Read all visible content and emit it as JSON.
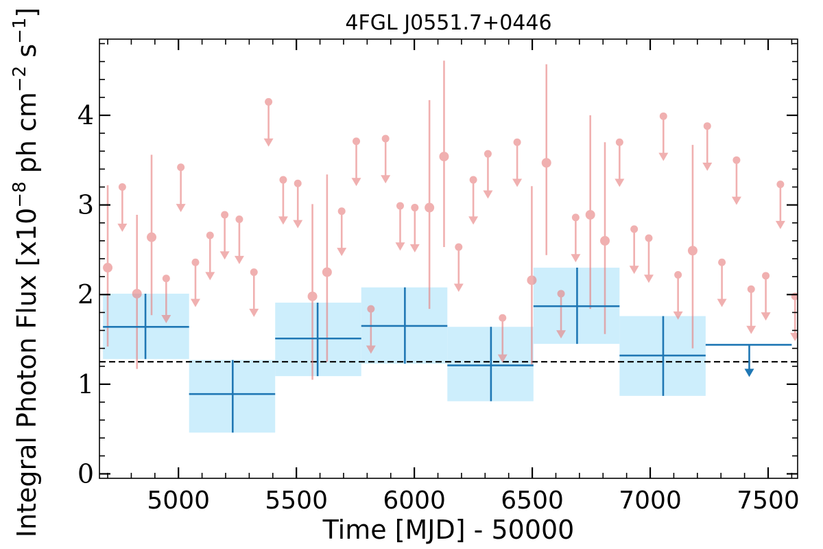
{
  "chart_data": {
    "type": "scatter",
    "title": "4FGL J0551.7+0446",
    "xlabel": "Time [MJD] - 50000",
    "ylabel": "Integral Photon Flux [x10^-8 ph cm^-2 s^-1]",
    "ylabel_parts": {
      "base": "Integral Photon Flux [x10",
      "exp1": "−8",
      "mid": " ph cm",
      "exp2": "−2",
      "mid2": " s",
      "exp3": "−1",
      "end": "]"
    },
    "xlim": [
      4665,
      7625
    ],
    "ylim": [
      -0.05,
      4.85
    ],
    "xticks": [
      5000,
      5500,
      6000,
      6500,
      7000,
      7500
    ],
    "yticks": [
      0,
      1,
      2,
      3,
      4
    ],
    "grid": false,
    "colors": {
      "short_bins": "#e88080",
      "long_bins": "#1f77b4",
      "long_bins_band": "#cdeefc",
      "reference_line": "#000000"
    },
    "reference_line": {
      "y": 1.25,
      "style": "dashed"
    },
    "long_bins": [
      {
        "xlo": 4680,
        "xhi": 5045,
        "x": 4860,
        "y": 1.64,
        "ylo": 1.28,
        "yhi": 2.01,
        "band": [
          1.28,
          2.01
        ]
      },
      {
        "xlo": 5045,
        "xhi": 5410,
        "x": 5230,
        "y": 0.89,
        "ylo": 0.46,
        "yhi": 1.27,
        "band": [
          0.46,
          1.27
        ]
      },
      {
        "xlo": 5410,
        "xhi": 5775,
        "x": 5590,
        "y": 1.51,
        "ylo": 1.09,
        "yhi": 1.91,
        "band": [
          1.09,
          1.91
        ]
      },
      {
        "xlo": 5775,
        "xhi": 6140,
        "x": 5960,
        "y": 1.65,
        "ylo": 1.23,
        "yhi": 2.08,
        "band": [
          1.23,
          2.08
        ]
      },
      {
        "xlo": 6140,
        "xhi": 6505,
        "x": 6325,
        "y": 1.21,
        "ylo": 0.81,
        "yhi": 1.64,
        "band": [
          0.81,
          1.64
        ]
      },
      {
        "xlo": 6505,
        "xhi": 6870,
        "x": 6690,
        "y": 1.87,
        "ylo": 1.45,
        "yhi": 2.3,
        "band": [
          1.45,
          2.3
        ]
      },
      {
        "xlo": 6870,
        "xhi": 7235,
        "x": 7055,
        "y": 1.32,
        "ylo": 0.87,
        "yhi": 1.76,
        "band": [
          0.87,
          1.76
        ]
      },
      {
        "xlo": 7235,
        "xhi": 7600,
        "x": 7420,
        "y": 1.44,
        "upper_limit": true,
        "arrow_to": 1.08
      }
    ],
    "short_bins": [
      {
        "x": 4700,
        "y": 2.3,
        "ylo": 1.42,
        "yhi": 3.22
      },
      {
        "x": 4762,
        "y": 3.2,
        "upper_limit": true
      },
      {
        "x": 4824,
        "y": 2.01,
        "ylo": 1.17,
        "yhi": 2.89
      },
      {
        "x": 4886,
        "y": 2.64,
        "ylo": 1.77,
        "yhi": 3.56
      },
      {
        "x": 4948,
        "y": 2.18,
        "upper_limit": true
      },
      {
        "x": 5010,
        "y": 3.42,
        "upper_limit": true
      },
      {
        "x": 5072,
        "y": 2.36,
        "upper_limit": true
      },
      {
        "x": 5134,
        "y": 2.66,
        "upper_limit": true
      },
      {
        "x": 5196,
        "y": 2.89,
        "upper_limit": true
      },
      {
        "x": 5258,
        "y": 2.84,
        "upper_limit": true
      },
      {
        "x": 5320,
        "y": 2.25,
        "upper_limit": true
      },
      {
        "x": 5382,
        "y": 4.15,
        "upper_limit": true
      },
      {
        "x": 5444,
        "y": 3.28,
        "upper_limit": true
      },
      {
        "x": 5506,
        "y": 3.24,
        "upper_limit": true
      },
      {
        "x": 5568,
        "y": 1.98,
        "ylo": 1.05,
        "yhi": 3.01
      },
      {
        "x": 5630,
        "y": 2.25,
        "ylo": 1.25,
        "yhi": 3.34
      },
      {
        "x": 5692,
        "y": 2.93,
        "upper_limit": true
      },
      {
        "x": 5754,
        "y": 3.71,
        "upper_limit": true
      },
      {
        "x": 5816,
        "y": 1.84,
        "upper_limit": true
      },
      {
        "x": 5878,
        "y": 3.74,
        "upper_limit": true
      },
      {
        "x": 5940,
        "y": 2.99,
        "upper_limit": true
      },
      {
        "x": 6002,
        "y": 2.97,
        "upper_limit": true
      },
      {
        "x": 6064,
        "y": 2.97,
        "ylo": 1.84,
        "yhi": 4.17
      },
      {
        "x": 6126,
        "y": 3.54,
        "ylo": 2.53,
        "yhi": 4.61
      },
      {
        "x": 6188,
        "y": 2.53,
        "upper_limit": true
      },
      {
        "x": 6250,
        "y": 3.28,
        "upper_limit": true
      },
      {
        "x": 6312,
        "y": 3.57,
        "upper_limit": true
      },
      {
        "x": 6374,
        "y": 1.74,
        "upper_limit": true
      },
      {
        "x": 6436,
        "y": 3.7,
        "upper_limit": true
      },
      {
        "x": 6498,
        "y": 2.16,
        "ylo": 1.2,
        "yhi": 3.21
      },
      {
        "x": 6560,
        "y": 3.47,
        "ylo": 2.44,
        "yhi": 4.57
      },
      {
        "x": 6622,
        "y": 2.01,
        "upper_limit": true
      },
      {
        "x": 6684,
        "y": 2.86,
        "upper_limit": true
      },
      {
        "x": 6746,
        "y": 2.89,
        "ylo": 1.84,
        "yhi": 4.0
      },
      {
        "x": 6808,
        "y": 2.6,
        "ylo": 1.56,
        "yhi": 3.7
      },
      {
        "x": 6870,
        "y": 3.7,
        "upper_limit": true
      },
      {
        "x": 6932,
        "y": 2.73,
        "upper_limit": true
      },
      {
        "x": 6994,
        "y": 2.63,
        "upper_limit": true
      },
      {
        "x": 7056,
        "y": 3.99,
        "upper_limit": true
      },
      {
        "x": 7118,
        "y": 2.22,
        "upper_limit": true
      },
      {
        "x": 7180,
        "y": 2.49,
        "ylo": 1.4,
        "yhi": 3.67
      },
      {
        "x": 7242,
        "y": 3.88,
        "upper_limit": true
      },
      {
        "x": 7304,
        "y": 2.36,
        "upper_limit": true
      },
      {
        "x": 7366,
        "y": 3.5,
        "upper_limit": true
      },
      {
        "x": 7428,
        "y": 2.06,
        "upper_limit": true
      },
      {
        "x": 7490,
        "y": 2.21,
        "upper_limit": true
      },
      {
        "x": 7552,
        "y": 3.23,
        "upper_limit": true
      },
      {
        "x": 7614,
        "y": 1.98,
        "upper_limit": true
      }
    ]
  }
}
